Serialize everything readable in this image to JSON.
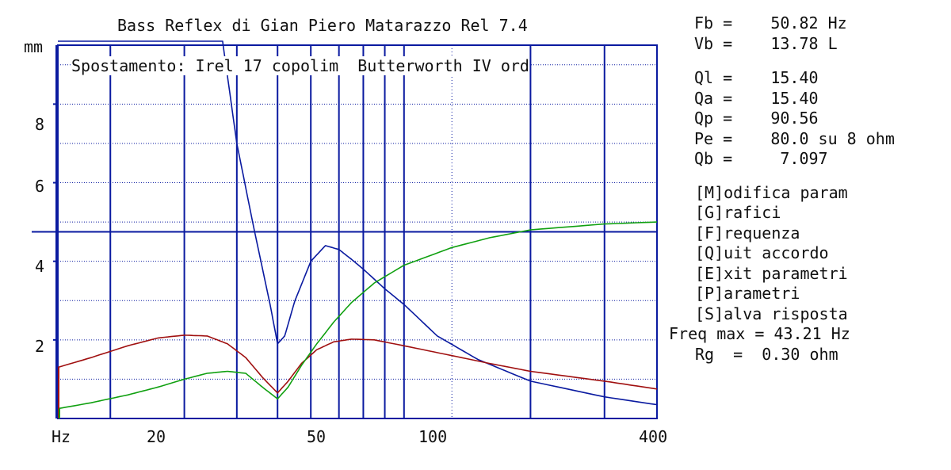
{
  "chart_data": {
    "type": "line",
    "title": "Bass Reflex di Gian Piero Matarazzo Rel 7.4",
    "subtitle": "Spostamento: Irel 17 copolim  Butterworth IV ord",
    "ylabel": "mm",
    "xlabel": "Hz",
    "xscale": "log",
    "xlim": [
      15,
      400
    ],
    "ylim": [
      0,
      9.5
    ],
    "x_ticks": [
      20,
      50,
      100,
      400
    ],
    "y_ticks": [
      2,
      4,
      6,
      8
    ],
    "grid": true,
    "reference_line_y": 4.75,
    "series": [
      {
        "color": "#0a1aa0",
        "x": [
          15,
          37,
          40,
          44,
          48,
          50,
          52,
          55,
          60,
          65,
          70,
          75,
          80,
          90,
          100,
          120,
          150,
          200,
          300,
          400
        ],
        "y": [
          9.6,
          9.6,
          7.0,
          4.8,
          2.9,
          1.9,
          2.1,
          3.0,
          4.0,
          4.4,
          4.3,
          4.05,
          3.8,
          3.3,
          2.9,
          2.1,
          1.5,
          0.95,
          0.55,
          0.35
        ]
      },
      {
        "color": "#a01010",
        "x": [
          15,
          18,
          22,
          26,
          30,
          34,
          38,
          42,
          46,
          50,
          53,
          57,
          62,
          68,
          75,
          85,
          100,
          130,
          160,
          200,
          300,
          400
        ],
        "y": [
          1.3,
          1.55,
          1.85,
          2.05,
          2.12,
          2.1,
          1.9,
          1.55,
          1.05,
          0.65,
          0.95,
          1.4,
          1.75,
          1.95,
          2.02,
          2.0,
          1.85,
          1.6,
          1.4,
          1.2,
          0.95,
          0.75
        ]
      },
      {
        "color": "#10a010",
        "x": [
          15,
          18,
          22,
          26,
          30,
          34,
          38,
          42,
          46,
          50,
          53,
          57,
          62,
          68,
          75,
          85,
          100,
          130,
          160,
          200,
          300,
          400
        ],
        "y": [
          0.25,
          0.4,
          0.6,
          0.8,
          1.0,
          1.15,
          1.2,
          1.15,
          0.8,
          0.5,
          0.8,
          1.35,
          1.9,
          2.45,
          2.95,
          3.45,
          3.9,
          4.35,
          4.6,
          4.8,
          4.95,
          5.0
        ]
      }
    ]
  },
  "params": {
    "fb": "Fb =    50.82 Hz",
    "vb": "Vb =    13.78 L",
    "ql": "Ql =    15.40",
    "qa": "Qa =    15.40",
    "qp": "Qp =    90.56",
    "pe": "Pe =    80.0 su 8 ohm",
    "qb": "Qb =     7.097"
  },
  "menu": [
    "[M]odifica param",
    "[G]rafici",
    "[F]requenza",
    "[Q]uit accordo",
    "[E]xit parametri",
    "[P]arametri",
    "[S]alva risposta"
  ],
  "footer": {
    "freq_max": "Freq max = 43.21 Hz",
    "rg": "Rg  =  0.30 ohm"
  },
  "colors": {
    "frame": "#0a1aa0",
    "grid": "#0a1aa0",
    "red_series": "#a01010",
    "green_series": "#10a010"
  }
}
